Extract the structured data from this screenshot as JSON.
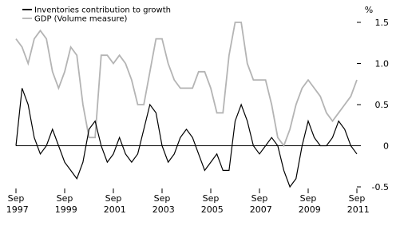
{
  "chart_data": {
    "type": "line",
    "y_label": "%",
    "categories": [
      "Sep 1997",
      null,
      null,
      null,
      null,
      null,
      null,
      null,
      "Sep 1999",
      null,
      null,
      null,
      null,
      null,
      null,
      null,
      "Sep 2001",
      null,
      null,
      null,
      null,
      null,
      null,
      null,
      "Sep 2003",
      null,
      null,
      null,
      null,
      null,
      null,
      null,
      "Sep 2005",
      null,
      null,
      null,
      null,
      null,
      null,
      null,
      "Sep 2007",
      null,
      null,
      null,
      null,
      null,
      null,
      null,
      "Sep 2009",
      null,
      null,
      null,
      null,
      null,
      null,
      null,
      "Sep 2011"
    ],
    "series": [
      {
        "name": "Inventories contribution to growth",
        "color": "#000000",
        "values": [
          0,
          0.7,
          0.5,
          0.1,
          -0.1,
          0,
          0.2,
          0,
          -0.2,
          -0.3,
          -0.4,
          -0.2,
          0.2,
          0.3,
          0,
          -0.2,
          -0.1,
          0.1,
          -0.1,
          -0.2,
          -0.1,
          0.2,
          0.5,
          0.4,
          0,
          -0.2,
          -0.1,
          0.1,
          0.2,
          0.1,
          -0.1,
          -0.3,
          -0.2,
          -0.1,
          -0.3,
          -0.3,
          0.3,
          0.5,
          0.3,
          0,
          -0.1,
          0,
          0.1,
          0,
          -0.3,
          -0.5,
          -0.4,
          0,
          0.3,
          0.1,
          0,
          0,
          0.1,
          0.3,
          0.2,
          0,
          -0.1
        ]
      },
      {
        "name": "GDP (Volume measure)",
        "color": "#b4b4b4",
        "values": [
          1.3,
          1.2,
          1.0,
          1.3,
          1.4,
          1.3,
          0.9,
          0.7,
          0.9,
          1.2,
          1.1,
          0.5,
          0.1,
          0.1,
          1.1,
          1.1,
          1.0,
          1.1,
          1.0,
          0.8,
          0.5,
          0.5,
          0.9,
          1.3,
          1.3,
          1.0,
          0.8,
          0.7,
          0.7,
          0.7,
          0.9,
          0.9,
          0.7,
          0.4,
          0.4,
          1.1,
          1.5,
          1.5,
          1.0,
          0.8,
          0.8,
          0.8,
          0.5,
          0.1,
          0.0,
          0.2,
          0.5,
          0.7,
          0.8,
          0.7,
          0.6,
          0.4,
          0.3,
          0.4,
          0.5,
          0.6,
          0.8
        ]
      }
    ],
    "ylim": [
      -0.5,
      1.5
    ],
    "yticks": [
      -0.5,
      0,
      0.5,
      {
        "value": 1.0,
        "label": "1.0"
      },
      1.5
    ],
    "grid": false,
    "legend": "top-left"
  }
}
